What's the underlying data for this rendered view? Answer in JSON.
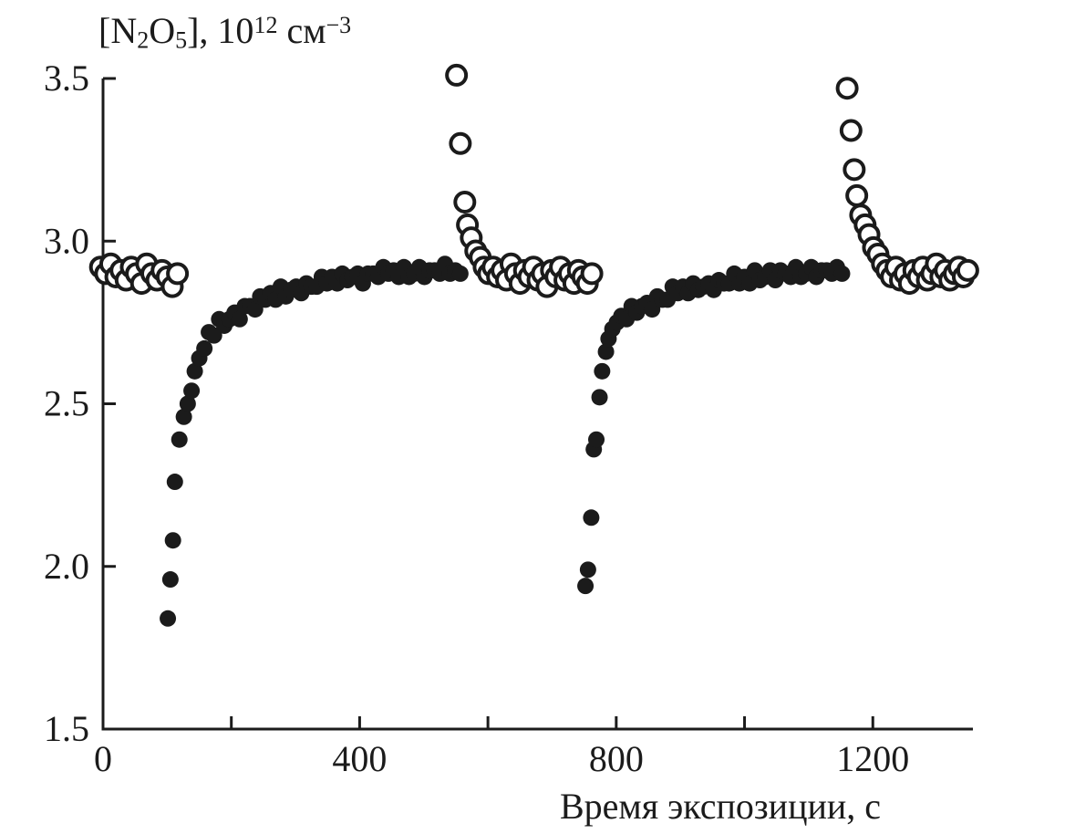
{
  "chart_data": {
    "type": "scatter",
    "title": "",
    "xlabel": "Время экспозиции, с",
    "ylabel": "[N₂O₅], 10¹² см⁻³",
    "ylabel_parts": [
      {
        "t": "[N"
      },
      {
        "t": "2",
        "style": "sub"
      },
      {
        "t": "O"
      },
      {
        "t": "5",
        "style": "sub"
      },
      {
        "t": "], 10"
      },
      {
        "t": "12",
        "style": "sup"
      },
      {
        "t": " см"
      },
      {
        "t": "−3",
        "style": "sup"
      }
    ],
    "xlim": [
      0,
      1356
    ],
    "ylim": [
      1.5,
      3.5
    ],
    "grid": false,
    "legend": "none",
    "frame": "L-shaped (left and bottom axes only)",
    "ink_color": "#1b1b1b",
    "x_ticks_major": {
      "values": [
        0,
        400,
        800,
        1200
      ],
      "labels": [
        "0",
        "400",
        "800",
        "1200"
      ]
    },
    "x_ticks_minor": [
      200,
      600,
      1000
    ],
    "y_ticks_major": {
      "values": [
        1.5,
        2.0,
        2.5,
        3.0,
        3.5
      ],
      "labels": [
        "1.5",
        "2.0",
        "2.5",
        "3.0",
        "3.5"
      ]
    },
    "series": [
      {
        "name": "filled-circles",
        "marker": "circle-filled",
        "radius": 9,
        "points": [
          [
            101,
            1.84
          ],
          [
            105,
            1.96
          ],
          [
            109,
            2.08
          ],
          [
            112,
            2.26
          ],
          [
            119,
            2.39
          ],
          [
            126,
            2.46
          ],
          [
            132,
            2.5
          ],
          [
            138,
            2.54
          ],
          [
            143,
            2.6
          ],
          [
            150,
            2.64
          ],
          [
            158,
            2.67
          ],
          [
            165,
            2.72
          ],
          [
            173,
            2.71
          ],
          [
            181,
            2.76
          ],
          [
            189,
            2.74
          ],
          [
            197,
            2.76
          ],
          [
            205,
            2.78
          ],
          [
            213,
            2.76
          ],
          [
            221,
            2.8
          ],
          [
            229,
            2.8
          ],
          [
            237,
            2.79
          ],
          [
            245,
            2.83
          ],
          [
            253,
            2.82
          ],
          [
            261,
            2.84
          ],
          [
            269,
            2.82
          ],
          [
            277,
            2.86
          ],
          [
            285,
            2.83
          ],
          [
            293,
            2.85
          ],
          [
            301,
            2.86
          ],
          [
            309,
            2.84
          ],
          [
            317,
            2.87
          ],
          [
            325,
            2.86
          ],
          [
            333,
            2.86
          ],
          [
            341,
            2.89
          ],
          [
            349,
            2.87
          ],
          [
            357,
            2.89
          ],
          [
            365,
            2.87
          ],
          [
            373,
            2.9
          ],
          [
            381,
            2.88
          ],
          [
            389,
            2.89
          ],
          [
            397,
            2.9
          ],
          [
            405,
            2.87
          ],
          [
            413,
            2.9
          ],
          [
            421,
            2.9
          ],
          [
            429,
            2.89
          ],
          [
            437,
            2.92
          ],
          [
            445,
            2.9
          ],
          [
            453,
            2.91
          ],
          [
            461,
            2.89
          ],
          [
            469,
            2.92
          ],
          [
            477,
            2.89
          ],
          [
            485,
            2.9
          ],
          [
            493,
            2.92
          ],
          [
            501,
            2.89
          ],
          [
            509,
            2.91
          ],
          [
            517,
            2.91
          ],
          [
            525,
            2.9
          ],
          [
            533,
            2.93
          ],
          [
            541,
            2.9
          ],
          [
            549,
            2.91
          ],
          [
            557,
            2.9
          ],
          [
            752,
            1.94
          ],
          [
            756,
            1.99
          ],
          [
            761,
            2.15
          ],
          [
            765,
            2.36
          ],
          [
            769,
            2.39
          ],
          [
            774,
            2.52
          ],
          [
            778,
            2.6
          ],
          [
            784,
            2.66
          ],
          [
            788,
            2.7
          ],
          [
            794,
            2.73
          ],
          [
            801,
            2.75
          ],
          [
            808,
            2.77
          ],
          [
            816,
            2.76
          ],
          [
            824,
            2.8
          ],
          [
            832,
            2.78
          ],
          [
            840,
            2.8
          ],
          [
            848,
            2.81
          ],
          [
            856,
            2.79
          ],
          [
            864,
            2.83
          ],
          [
            872,
            2.82
          ],
          [
            880,
            2.82
          ],
          [
            888,
            2.86
          ],
          [
            896,
            2.84
          ],
          [
            904,
            2.86
          ],
          [
            912,
            2.84
          ],
          [
            920,
            2.87
          ],
          [
            928,
            2.85
          ],
          [
            936,
            2.86
          ],
          [
            944,
            2.87
          ],
          [
            952,
            2.85
          ],
          [
            960,
            2.88
          ],
          [
            968,
            2.87
          ],
          [
            976,
            2.87
          ],
          [
            984,
            2.9
          ],
          [
            992,
            2.87
          ],
          [
            1000,
            2.89
          ],
          [
            1008,
            2.87
          ],
          [
            1016,
            2.91
          ],
          [
            1024,
            2.88
          ],
          [
            1032,
            2.89
          ],
          [
            1040,
            2.91
          ],
          [
            1048,
            2.88
          ],
          [
            1056,
            2.91
          ],
          [
            1064,
            2.9
          ],
          [
            1072,
            2.89
          ],
          [
            1080,
            2.92
          ],
          [
            1088,
            2.89
          ],
          [
            1096,
            2.9
          ],
          [
            1104,
            2.92
          ],
          [
            1112,
            2.89
          ],
          [
            1120,
            2.91
          ],
          [
            1128,
            2.91
          ],
          [
            1136,
            2.9
          ],
          [
            1144,
            2.92
          ],
          [
            1152,
            2.9
          ]
        ]
      },
      {
        "name": "open-circles",
        "marker": "circle-open",
        "radius": 10.5,
        "stroke_width": 4,
        "points": [
          [
            -4,
            2.92
          ],
          [
            4,
            2.9
          ],
          [
            12,
            2.93
          ],
          [
            20,
            2.89
          ],
          [
            28,
            2.91
          ],
          [
            36,
            2.88
          ],
          [
            44,
            2.92
          ],
          [
            52,
            2.9
          ],
          [
            60,
            2.87
          ],
          [
            68,
            2.93
          ],
          [
            76,
            2.9
          ],
          [
            84,
            2.88
          ],
          [
            92,
            2.91
          ],
          [
            100,
            2.89
          ],
          [
            108,
            2.86
          ],
          [
            116,
            2.9
          ],
          [
            551,
            3.51
          ],
          [
            557,
            3.3
          ],
          [
            564,
            3.12
          ],
          [
            568,
            3.05
          ],
          [
            574,
            3.01
          ],
          [
            581,
            2.97
          ],
          [
            588,
            2.95
          ],
          [
            594,
            2.92
          ],
          [
            601,
            2.9
          ],
          [
            608,
            2.92
          ],
          [
            615,
            2.89
          ],
          [
            622,
            2.91
          ],
          [
            629,
            2.88
          ],
          [
            636,
            2.93
          ],
          [
            643,
            2.9
          ],
          [
            650,
            2.87
          ],
          [
            657,
            2.91
          ],
          [
            664,
            2.89
          ],
          [
            671,
            2.92
          ],
          [
            678,
            2.88
          ],
          [
            685,
            2.9
          ],
          [
            692,
            2.86
          ],
          [
            699,
            2.91
          ],
          [
            706,
            2.89
          ],
          [
            713,
            2.92
          ],
          [
            720,
            2.88
          ],
          [
            727,
            2.9
          ],
          [
            734,
            2.87
          ],
          [
            741,
            2.91
          ],
          [
            748,
            2.89
          ],
          [
            755,
            2.87
          ],
          [
            762,
            2.9
          ],
          [
            1160,
            3.47
          ],
          [
            1166,
            3.34
          ],
          [
            1171,
            3.22
          ],
          [
            1175,
            3.14
          ],
          [
            1181,
            3.08
          ],
          [
            1188,
            3.05
          ],
          [
            1194,
            3.02
          ],
          [
            1201,
            2.98
          ],
          [
            1208,
            2.96
          ],
          [
            1215,
            2.93
          ],
          [
            1222,
            2.91
          ],
          [
            1229,
            2.89
          ],
          [
            1236,
            2.92
          ],
          [
            1243,
            2.88
          ],
          [
            1250,
            2.9
          ],
          [
            1257,
            2.87
          ],
          [
            1264,
            2.91
          ],
          [
            1271,
            2.89
          ],
          [
            1278,
            2.92
          ],
          [
            1285,
            2.88
          ],
          [
            1292,
            2.9
          ],
          [
            1299,
            2.93
          ],
          [
            1306,
            2.89
          ],
          [
            1313,
            2.91
          ],
          [
            1320,
            2.88
          ],
          [
            1327,
            2.9
          ],
          [
            1334,
            2.92
          ],
          [
            1341,
            2.89
          ],
          [
            1348,
            2.91
          ]
        ]
      }
    ]
  }
}
